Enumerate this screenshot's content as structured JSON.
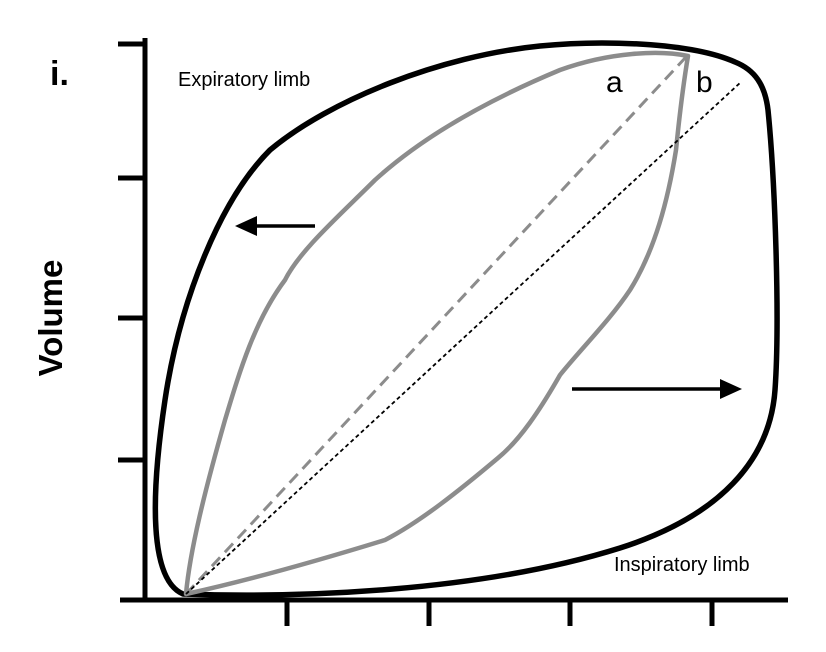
{
  "panel_label": "i.",
  "y_axis_label": "Volume",
  "limb_labels": {
    "expiratory": "Expiratory limb",
    "inspiratory": "Inspiratory limb"
  },
  "line_labels": {
    "a": "a",
    "b": "b"
  },
  "colors": {
    "outer_loop": "#000000",
    "inner_loop": "#8c8c8c",
    "line_a": "#8c8c8c",
    "line_b": "#000000",
    "axes": "#000000"
  }
}
